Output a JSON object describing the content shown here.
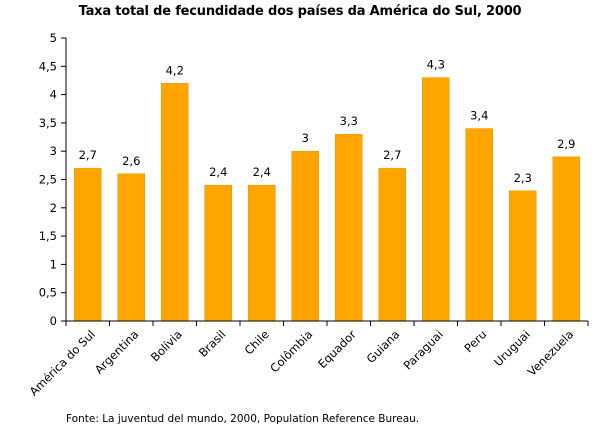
{
  "chart_data": {
    "type": "bar",
    "title": "Taxa total de fecundidade dos países da América do Sul, 2000",
    "xlabel": "",
    "ylabel": "",
    "categories": [
      "América do Sul",
      "Argentina",
      "Bolívia",
      "Brasil",
      "Chile",
      "Colômbia",
      "Equador",
      "Guiana",
      "Paraguai",
      "Peru",
      "Uruguai",
      "Venezuela"
    ],
    "values": [
      2.7,
      2.6,
      4.2,
      2.4,
      2.4,
      3,
      3.3,
      2.7,
      4.3,
      3.4,
      2.3,
      2.9
    ],
    "value_labels": [
      "2,7",
      "2,6",
      "4,2",
      "2,4",
      "2,4",
      "3",
      "3,3",
      "2,7",
      "4,3",
      "3,4",
      "2,3",
      "2,9"
    ],
    "ylim": [
      0,
      5
    ],
    "yticks": [
      0,
      0.5,
      1,
      1.5,
      2,
      2.5,
      3,
      3.5,
      4,
      4.5,
      5
    ],
    "ytick_labels": [
      "0",
      "0,5",
      "1",
      "1,5",
      "2",
      "2,5",
      "3",
      "3,5",
      "4",
      "4,5",
      "5"
    ],
    "grid": false,
    "legend": "none",
    "colors": {
      "bar": "#FFA500",
      "bar_edge": "#E69500",
      "axis": "#000000"
    },
    "source": "Fonte: La juventud del mundo, 2000, Population Reference Bureau."
  }
}
